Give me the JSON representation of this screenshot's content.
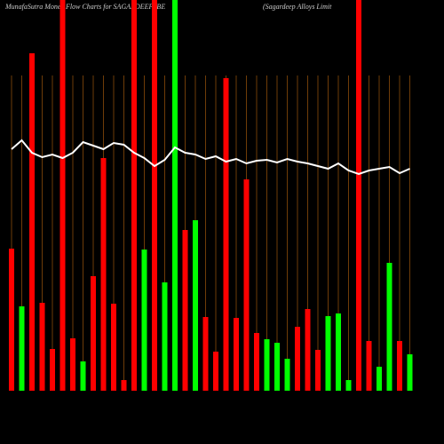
{
  "chart_data": {
    "type": "bar",
    "title": "MunafaSutra  Money Flow  Charts for SAGARDEEP_BE",
    "subtitle": "(Sagardeep Alloys Limit",
    "categories": [
      null,
      null,
      null,
      null,
      null,
      null,
      null,
      null,
      null,
      null,
      null,
      null,
      null,
      null,
      null,
      null,
      null,
      null,
      null,
      null,
      null,
      null,
      null,
      null,
      null,
      null,
      null,
      null,
      null,
      null,
      null,
      null,
      null,
      null,
      null,
      null,
      null,
      null,
      null,
      null
    ],
    "values": [
      160,
      95,
      380,
      99,
      47,
      440,
      59,
      33,
      129,
      262,
      98,
      12,
      440,
      159,
      440,
      122,
      440,
      181,
      192,
      83,
      44,
      352,
      82,
      238,
      65,
      58,
      54,
      36,
      72,
      92,
      46,
      84,
      87,
      12,
      440,
      56,
      27,
      144,
      56,
      41
    ],
    "colors": [
      "#ff0000",
      "#00ff00",
      "#ff0000",
      "#ff0000",
      "#ff0000",
      "#ff0000",
      "#ff0000",
      "#00ff00",
      "#ff0000",
      "#ff0000",
      "#ff0000",
      "#ff0000",
      "#ff0000",
      "#00ff00",
      "#ff0000",
      "#00ff00",
      "#00ff00",
      "#ff0000",
      "#00ff00",
      "#ff0000",
      "#ff0000",
      "#ff0000",
      "#ff0000",
      "#ff0000",
      "#ff0000",
      "#00ff00",
      "#00ff00",
      "#00ff00",
      "#ff0000",
      "#ff0000",
      "#ff0000",
      "#00ff00",
      "#00ff00",
      "#00ff00",
      "#ff0000",
      "#ff0000",
      "#00ff00",
      "#00ff00",
      "#ff0000",
      "#00ff00"
    ],
    "line": {
      "color": "#ffffff",
      "values": [
        272,
        282,
        268,
        263,
        266,
        262,
        268,
        280,
        276,
        272,
        279,
        277,
        268,
        262,
        253,
        260,
        274,
        268,
        266,
        261,
        264,
        258,
        261,
        256,
        259,
        260,
        257,
        261,
        258,
        256,
        253,
        250,
        256,
        248,
        244,
        248,
        250,
        252,
        245,
        250
      ]
    },
    "ylim": [
      0,
      440
    ],
    "grid_color": "#b8650f"
  }
}
